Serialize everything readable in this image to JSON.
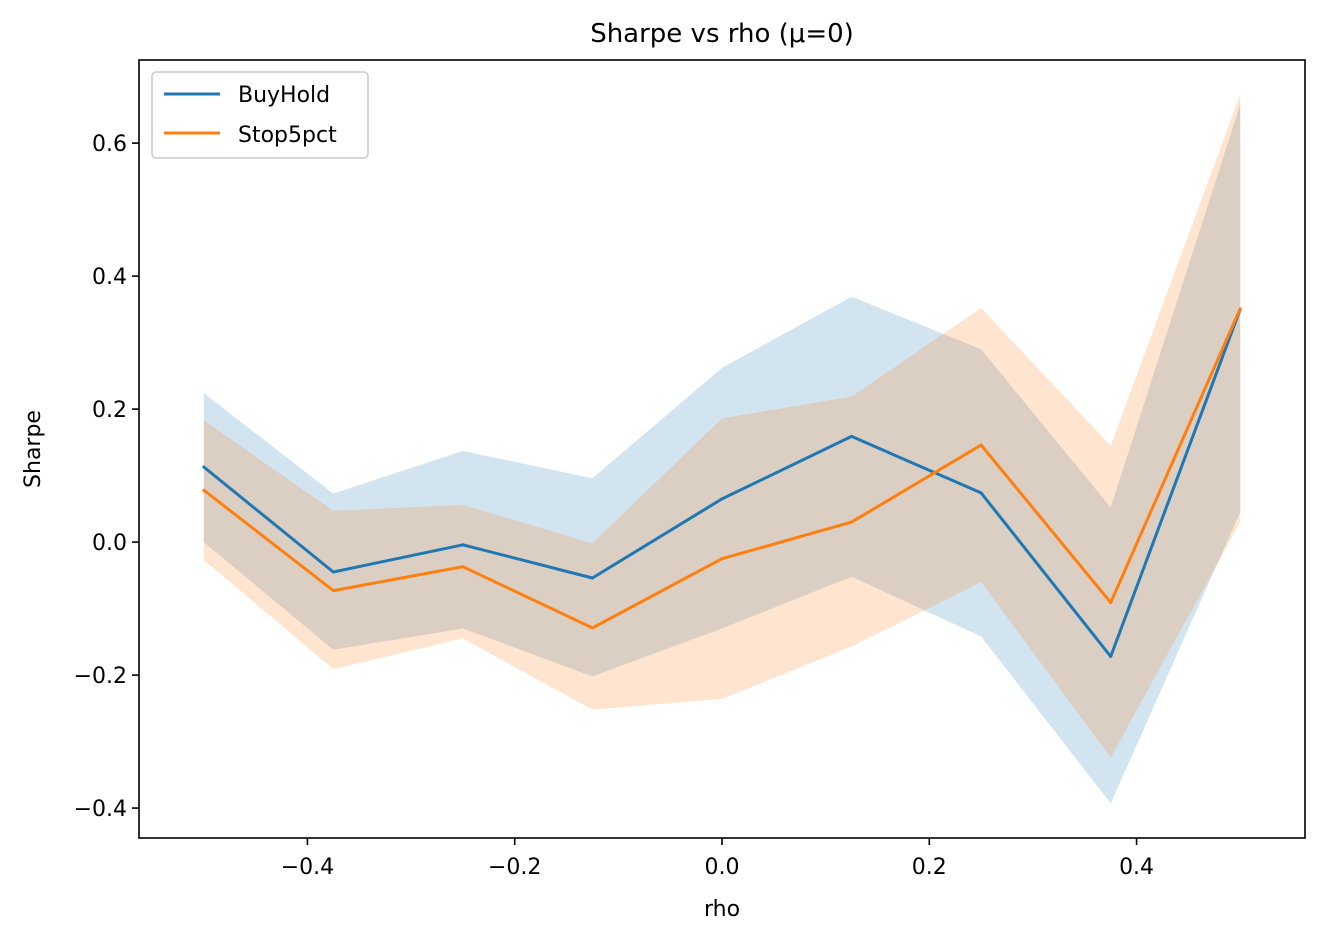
{
  "chart_data": {
    "type": "line",
    "title": "Sharpe vs rho (μ=0)",
    "xlabel": "rho",
    "ylabel": "Sharpe",
    "xlim": [
      -0.5625,
      0.5625
    ],
    "ylim": [
      -0.445,
      0.725
    ],
    "xticks": [
      -0.4,
      -0.2,
      0.0,
      0.2,
      0.4
    ],
    "xtick_labels": [
      "−0.4",
      "−0.2",
      "0.0",
      "0.2",
      "0.4"
    ],
    "yticks": [
      -0.4,
      -0.2,
      0.0,
      0.2,
      0.4,
      0.6
    ],
    "ytick_labels": [
      "−0.4",
      "−0.2",
      "0.0",
      "0.2",
      "0.4",
      "0.6"
    ],
    "grid": false,
    "legend_position": "top-left",
    "x": [
      -0.5,
      -0.375,
      -0.25,
      -0.125,
      0.0,
      0.125,
      0.25,
      0.375,
      0.5
    ],
    "series": [
      {
        "name": "BuyHold",
        "color": "#1f77b4",
        "band_color": "#1f77b4",
        "values": [
          0.113,
          -0.045,
          -0.004,
          -0.054,
          0.065,
          0.159,
          0.074,
          -0.172,
          0.35
        ],
        "lower": [
          0.0,
          -0.162,
          -0.13,
          -0.202,
          -0.13,
          -0.052,
          -0.142,
          -0.393,
          0.045
        ],
        "upper": [
          0.224,
          0.073,
          0.137,
          0.096,
          0.262,
          0.369,
          0.29,
          0.052,
          0.658
        ]
      },
      {
        "name": "Stop5pct",
        "color": "#ff7f0e",
        "band_color": "#ff7f0e",
        "values": [
          0.078,
          -0.073,
          -0.037,
          -0.129,
          -0.025,
          0.03,
          0.146,
          -0.091,
          0.351
        ],
        "lower": [
          -0.027,
          -0.191,
          -0.145,
          -0.252,
          -0.236,
          -0.157,
          -0.06,
          -0.324,
          0.03
        ],
        "upper": [
          0.183,
          0.047,
          0.056,
          -0.002,
          0.186,
          0.219,
          0.352,
          0.145,
          0.673
        ]
      }
    ]
  }
}
